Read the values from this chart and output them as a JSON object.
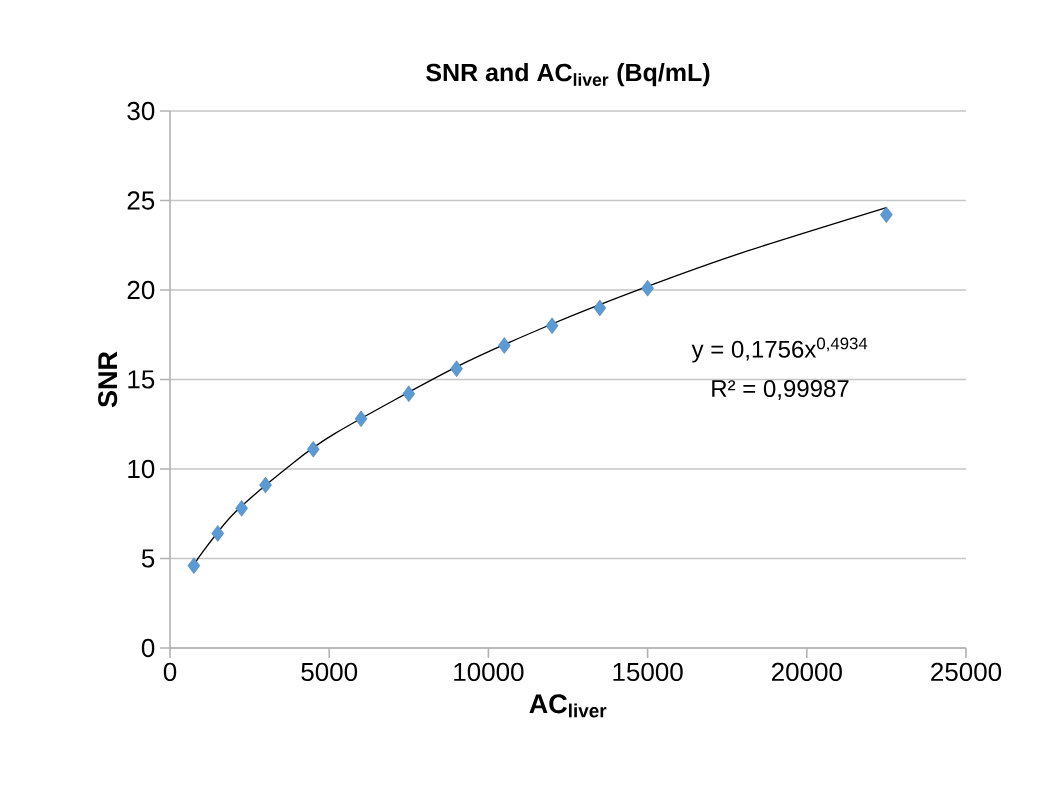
{
  "chart_data": {
    "type": "scatter",
    "title": "SNR and AC$_{liver}$ (Bq/mL)",
    "xlabel": "AC$_{liver}$",
    "ylabel": "SNR",
    "annotations": [
      "y = 0,1756x$^{0,4934}$",
      "R² = 0,99987"
    ],
    "xlim": [
      0,
      25000
    ],
    "xticks": [
      0,
      5000,
      10000,
      15000,
      20000,
      25000
    ],
    "ylim": [
      0,
      30
    ],
    "yticks": [
      0,
      5,
      10,
      15,
      20,
      25,
      30
    ],
    "grid": "y",
    "marker": "diamond",
    "series": [
      {
        "color": "#5b9bd5",
        "x": [
          750,
          1500,
          2250,
          3000,
          4500,
          6000,
          7500,
          9000,
          10500,
          12000,
          13500,
          15000,
          22500
        ],
        "values": [
          4.6,
          6.4,
          7.8,
          9.1,
          11.1,
          12.8,
          14.2,
          15.6,
          16.9,
          18.0,
          19.0,
          20.1,
          24.2
        ]
      },
      {
        "type": "line",
        "color": "#000000",
        "marker": "none",
        "x": [
          750,
          1000,
          2000,
          3700,
          5200,
          9000,
          12000,
          15000,
          18000,
          22500
        ],
        "values": [
          4.6,
          5.3,
          7.5,
          10.1,
          12.0,
          15.7,
          18.1,
          20.2,
          22.1,
          24.6
        ]
      }
    ]
  }
}
